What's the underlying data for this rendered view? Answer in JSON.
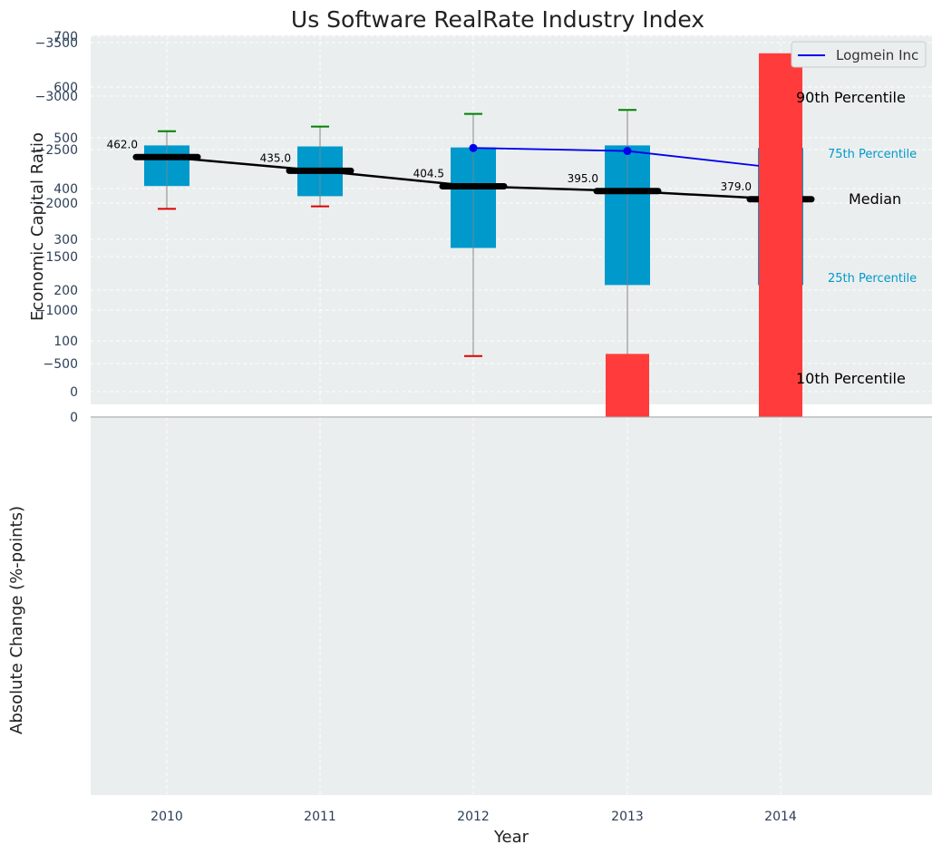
{
  "chart_data": [
    {
      "type": "box",
      "title": "Us Software RealRate Industry Index",
      "ylabel": "Economic Capital Ratio",
      "xlabel": "",
      "categories": [
        "2010",
        "2011",
        "2012",
        "2013",
        "2014"
      ],
      "ylim": [
        0,
        700
      ],
      "yticks": [
        0,
        100,
        200,
        300,
        400,
        500,
        600,
        700
      ],
      "grid": true,
      "boxes": [
        {
          "year": "2010",
          "p10": 360,
          "p25": 405,
          "median": 462,
          "p75": 485,
          "p90": 513
        },
        {
          "year": "2011",
          "p10": 365,
          "p25": 385,
          "median": 435,
          "p75": 483,
          "p90": 522
        },
        {
          "year": "2012",
          "p10": 70,
          "p25": 283,
          "median": 404.5,
          "p75": 481,
          "p90": 547
        },
        {
          "year": "2013",
          "p10": 52,
          "p25": 210,
          "median": 395,
          "p75": 485,
          "p90": 555
        },
        {
          "year": "2014",
          "p10": 42,
          "p25": 210,
          "median": 379,
          "p75": 480,
          "p90": 562
        }
      ],
      "median_labels": [
        "462.0",
        "435.0",
        "404.5",
        "395.0",
        "379.0"
      ],
      "series": [
        {
          "name": "Logmein Inc",
          "x": [
            "2012",
            "2013",
            "2014"
          ],
          "values": [
            480,
            474,
            440
          ],
          "color": "#0000ee"
        }
      ],
      "annotations": {
        "p90": "90th Percentile",
        "p75": "75th Percentile",
        "median": "Median",
        "p25": "25th Percentile",
        "p10": "10th Percentile"
      },
      "legend": {
        "position": "top-right",
        "entries": [
          "Logmein Inc"
        ]
      },
      "colors": {
        "box": "#0099cc",
        "line": "#0000ee",
        "median": "#000000",
        "p90_cap": "#008000",
        "p10_cap": "#dd0000",
        "background": "#eaeeee"
      }
    },
    {
      "type": "bar",
      "ylabel": "Absolute Change (%-points)",
      "xlabel": "Year",
      "categories": [
        "2010",
        "2011",
        "2012",
        "2013",
        "2014"
      ],
      "values": [
        0,
        0,
        0,
        -590,
        -3400
      ],
      "ylim": [
        -3550,
        0
      ],
      "yticks": [
        0,
        -500,
        -1000,
        -1500,
        -2000,
        -2500,
        -3000,
        -3500
      ],
      "grid": true,
      "colors": {
        "bar": "#ff3b3b"
      }
    }
  ]
}
